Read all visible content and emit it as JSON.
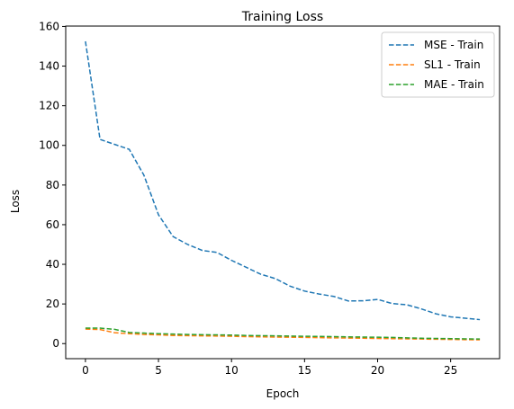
{
  "chart_data": {
    "type": "line",
    "title": "Training Loss",
    "xlabel": "Epoch",
    "ylabel": "Loss",
    "xlim": [
      -1.35,
      28.35
    ],
    "ylim": [
      -7.6,
      160.2
    ],
    "xticks": [
      0,
      5,
      10,
      15,
      20,
      25
    ],
    "yticks": [
      0,
      20,
      40,
      60,
      80,
      100,
      120,
      140,
      160
    ],
    "grid": false,
    "legend_position": "top-right",
    "x": [
      0,
      1,
      2,
      3,
      4,
      5,
      6,
      7,
      8,
      9,
      10,
      11,
      12,
      13,
      14,
      15,
      16,
      17,
      18,
      19,
      20,
      21,
      22,
      23,
      24,
      25,
      26,
      27
    ],
    "series": [
      {
        "name": "MSE - Train",
        "color": "#1f77b4",
        "linestyle": "dashed",
        "values": [
          152.5,
          103.0,
          100.5,
          98.0,
          85.0,
          65.0,
          54.0,
          50.0,
          47.0,
          46.0,
          42.0,
          38.5,
          35.0,
          32.8,
          29.0,
          26.5,
          25.0,
          23.8,
          21.5,
          21.6,
          22.3,
          20.2,
          19.6,
          17.5,
          15.0,
          13.5,
          12.8,
          12.1
        ]
      },
      {
        "name": "SL1 - Train",
        "color": "#ff7f0e",
        "linestyle": "dashed",
        "values": [
          7.3,
          7.1,
          5.5,
          5.0,
          4.6,
          4.4,
          4.1,
          4.0,
          3.9,
          3.8,
          3.7,
          3.5,
          3.4,
          3.3,
          3.2,
          3.1,
          3.0,
          2.9,
          2.8,
          2.7,
          2.6,
          2.5,
          2.4,
          2.3,
          2.2,
          2.1,
          2.0,
          1.9
        ]
      },
      {
        "name": "MAE - Train",
        "color": "#2ca02c",
        "linestyle": "dashed",
        "values": [
          7.8,
          7.8,
          7.2,
          5.6,
          5.3,
          5.0,
          4.8,
          4.6,
          4.5,
          4.4,
          4.3,
          4.1,
          4.0,
          3.9,
          3.8,
          3.7,
          3.6,
          3.5,
          3.4,
          3.3,
          3.2,
          3.1,
          2.9,
          2.7,
          2.6,
          2.5,
          2.4,
          2.3
        ]
      }
    ]
  }
}
